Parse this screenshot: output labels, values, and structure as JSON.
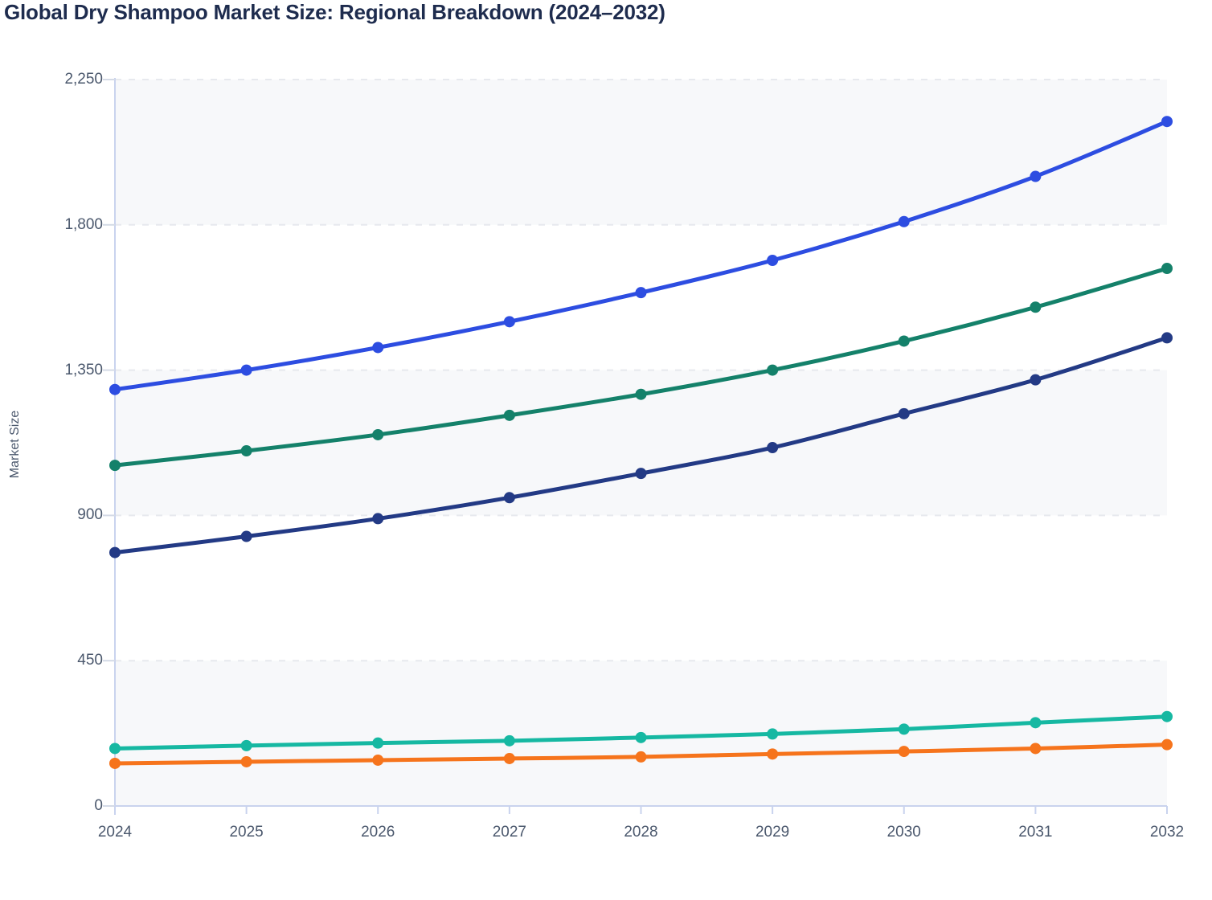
{
  "page": {
    "title": "Global Dry Shampoo Market Size: Regional Breakdown (2024–2032)"
  },
  "chart_data": {
    "type": "line",
    "title": "Global Dry Shampoo Market Size: Regional Breakdown (2024–2032)",
    "xlabel": "",
    "ylabel": "Market Size",
    "x": [
      2024,
      2025,
      2026,
      2027,
      2028,
      2029,
      2030,
      2031,
      2032
    ],
    "x_tick_labels": [
      "2024",
      "2025",
      "2026",
      "2027",
      "2028",
      "2029",
      "2030",
      "2031",
      "2032"
    ],
    "y_ticks": [
      0,
      450,
      900,
      1350,
      1800,
      2250
    ],
    "y_tick_labels": [
      "0",
      "450",
      "900",
      "1,350",
      "1,800",
      "2,250"
    ],
    "ylim": [
      0,
      2250
    ],
    "grid": "horizontal-dashed",
    "legend": "none",
    "series": [
      {
        "name": "series-royal-blue",
        "color": "#2d4de1",
        "values": [
          1290,
          1350,
          1420,
          1500,
          1590,
          1690,
          1810,
          1950,
          2120
        ]
      },
      {
        "name": "series-green",
        "color": "#14816a",
        "values": [
          1055,
          1100,
          1150,
          1210,
          1275,
          1350,
          1440,
          1545,
          1665
        ]
      },
      {
        "name": "series-navy",
        "color": "#233a85",
        "values": [
          785,
          835,
          890,
          955,
          1030,
          1110,
          1215,
          1320,
          1450
        ]
      },
      {
        "name": "series-teal",
        "color": "#16b8a2",
        "values": [
          178,
          187,
          195,
          202,
          212,
          223,
          238,
          258,
          277
        ]
      },
      {
        "name": "series-orange",
        "color": "#f6741c",
        "values": [
          132,
          137,
          142,
          147,
          152,
          161,
          169,
          178,
          190
        ]
      }
    ],
    "style": {
      "band_fill": "#f7f8fa",
      "gridline_color": "#e7e9ee",
      "axis_line_color": "#c9d3ee",
      "tick_mark_color": "#d4dae6",
      "tick_label_color": "#4b586d",
      "title_color": "#1e2c4e",
      "line_width": 5,
      "point_radius": 7
    }
  }
}
